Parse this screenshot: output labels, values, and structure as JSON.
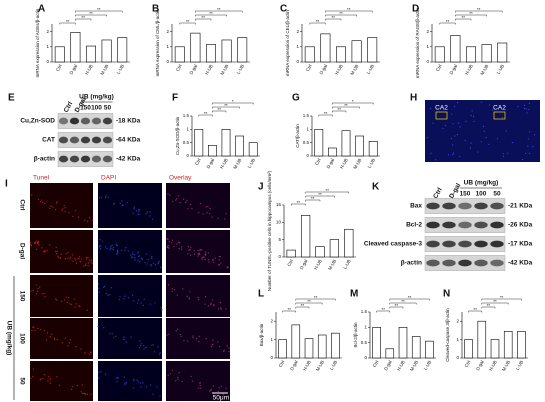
{
  "chart_data": [
    {
      "type": "bar",
      "panel": "A",
      "ylabel": "mRNA expression of AGEs/β-actin",
      "categories": [
        "Ctrl",
        "D-gal",
        "H-UB",
        "M-UB",
        "L-UB"
      ],
      "values": [
        1.0,
        1.95,
        1.05,
        1.45,
        1.6
      ],
      "ylim": [
        0,
        2.5
      ],
      "yticks": [
        0,
        1,
        2
      ],
      "significance": [
        "**",
        "**",
        "**",
        "**"
      ],
      "color": "#ffffff"
    },
    {
      "type": "bar",
      "panel": "B",
      "ylabel": "mRNA expression of CML/β-actin",
      "categories": [
        "Ctrl",
        "D-gal",
        "H-UB",
        "M-UB",
        "L-UB"
      ],
      "values": [
        1.0,
        1.9,
        1.15,
        1.45,
        1.6
      ],
      "ylim": [
        0,
        2.5
      ],
      "yticks": [
        0,
        1,
        2
      ],
      "significance": [
        "**",
        "**",
        "**",
        "**"
      ],
      "color": "#ffffff"
    },
    {
      "type": "bar",
      "panel": "C",
      "ylabel": "mRNA expression of CEL/β-actin",
      "categories": [
        "Ctrl",
        "D-gal",
        "H-UB",
        "M-UB",
        "L-UB"
      ],
      "values": [
        1.0,
        1.85,
        1.0,
        1.4,
        1.6
      ],
      "ylim": [
        0,
        2.5
      ],
      "yticks": [
        0,
        1,
        2
      ],
      "significance": [
        "**",
        "**",
        "**",
        "**"
      ],
      "color": "#ffffff"
    },
    {
      "type": "bar",
      "panel": "D",
      "ylabel": "mRNA expression of RAGE/β-actin",
      "categories": [
        "Ctrl",
        "D-gal",
        "H-UB",
        "M-UB",
        "L-UB"
      ],
      "values": [
        1.0,
        1.75,
        1.0,
        1.15,
        1.25
      ],
      "ylim": [
        0,
        2.5
      ],
      "yticks": [
        0,
        1,
        2
      ],
      "significance": [
        "**",
        "**",
        "**",
        "**"
      ],
      "color": "#ffffff"
    },
    {
      "type": "bar",
      "panel": "F",
      "ylabel": "Cu,Zn-SOD/β-actin",
      "categories": [
        "Ctrl",
        "D-gal",
        "H-UB",
        "M-UB",
        "L-UB"
      ],
      "values": [
        1.0,
        0.4,
        1.0,
        0.75,
        0.5
      ],
      "ylim": [
        0,
        1.5
      ],
      "yticks": [
        0,
        0.5,
        1,
        1.5
      ],
      "significance": [
        "**",
        "**",
        "**",
        "*"
      ],
      "color": "#ffffff"
    },
    {
      "type": "bar",
      "panel": "G",
      "ylabel": "CAT/β-actin",
      "categories": [
        "Ctrl",
        "D-gal",
        "H-UB",
        "M-UB",
        "L-UB"
      ],
      "values": [
        1.0,
        0.3,
        0.95,
        0.75,
        0.55
      ],
      "ylim": [
        0,
        1.5
      ],
      "yticks": [
        0,
        0.5,
        1,
        1.5
      ],
      "significance": [
        "**",
        "**",
        "**",
        "*"
      ],
      "color": "#ffffff"
    },
    {
      "type": "bar",
      "panel": "J",
      "ylabel": "Number of TUNEL-positive cells in hippocampus (cells/mm²)",
      "categories": [
        "Ctrl",
        "D-gal",
        "H-UB",
        "M-UB",
        "L-UB"
      ],
      "values": [
        2,
        12,
        3,
        5,
        8
      ],
      "ylim": [
        0,
        15
      ],
      "yticks": [
        0,
        5,
        10,
        15
      ],
      "significance": [
        "**",
        "**",
        "**",
        "**"
      ],
      "color": "#ffffff"
    },
    {
      "type": "bar",
      "panel": "L",
      "ylabel": "Bax/β-actin",
      "categories": [
        "Ctrl",
        "D-gal",
        "H-UB",
        "M-UB",
        "L-UB"
      ],
      "values": [
        1.0,
        1.8,
        1.05,
        1.25,
        1.35
      ],
      "ylim": [
        0,
        2.5
      ],
      "yticks": [
        0,
        1,
        2
      ],
      "significance": [
        "**",
        "**",
        "**",
        "**"
      ],
      "color": "#ffffff"
    },
    {
      "type": "bar",
      "panel": "M",
      "ylabel": "Bcl-2/β-actin",
      "categories": [
        "Ctrl",
        "D-gal",
        "H-UB",
        "M-UB",
        "L-UB"
      ],
      "values": [
        1.0,
        0.3,
        1.0,
        0.7,
        0.55
      ],
      "ylim": [
        0,
        1.5
      ],
      "yticks": [
        0,
        0.5,
        1,
        1.5
      ],
      "significance": [
        "**",
        "**",
        "**",
        "**"
      ],
      "color": "#ffffff"
    },
    {
      "type": "bar",
      "panel": "N",
      "ylabel": "Cleaved-caspase 3/β-actin",
      "categories": [
        "Ctrl",
        "D-gal",
        "H-UB",
        "M-UB",
        "L-UB"
      ],
      "values": [
        1.0,
        2.0,
        1.0,
        1.45,
        1.45
      ],
      "ylim": [
        0,
        2.5
      ],
      "yticks": [
        0,
        1,
        2
      ],
      "significance": [
        "**",
        "**",
        "**",
        "**"
      ],
      "color": "#ffffff"
    }
  ],
  "blot_E": {
    "panel": "E",
    "lanes": [
      "Ctrl",
      "D-gal"
    ],
    "group": "UB (mg/kg)",
    "doses": [
      "150",
      "100",
      "50"
    ],
    "rows": [
      "Cu,Zn-SOD",
      "CAT",
      "β-actin"
    ],
    "sizes": [
      "-18 KDa",
      "-64 KDa",
      "-42 KDa"
    ]
  },
  "image_H": {
    "panel": "H",
    "regions": [
      "CA2",
      "CA2"
    ]
  },
  "image_I": {
    "panel": "I",
    "columns": [
      "Tunel",
      "DAPI",
      "Overlay"
    ],
    "rows": [
      "Ctrl",
      "D-gal"
    ],
    "group": "UB (mg/kg)",
    "doses": [
      "150",
      "100",
      "50"
    ],
    "scale": "50μm"
  },
  "blot_K": {
    "panel": "K",
    "lanes": [
      "Ctrl",
      "D-gal"
    ],
    "group": "UB (mg/kg)",
    "doses": [
      "150",
      "100",
      "50"
    ],
    "rows": [
      "Bax",
      "Bcl-2",
      "Cleaved caspase-3",
      "β-actin"
    ],
    "sizes": [
      "-21 KDa",
      "-26 KDa",
      "-17 KDa",
      "-42 KDa"
    ]
  }
}
